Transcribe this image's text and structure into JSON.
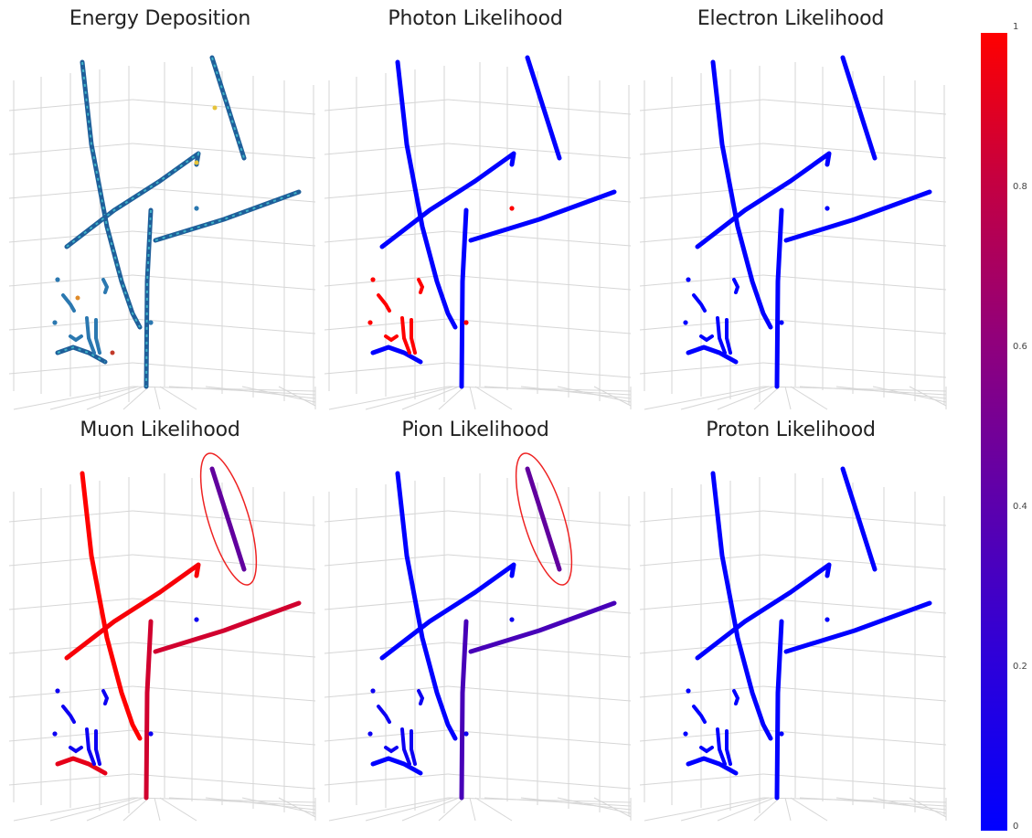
{
  "panels": [
    {
      "title": "Energy Deposition",
      "mode": "energy"
    },
    {
      "title": "Photon Likelihood",
      "values": {
        "a": 0.0,
        "b": 0.0,
        "c": 0.0,
        "d": 0.0,
        "e": 0.0,
        "f": 0.0,
        "frag": 1.0
      }
    },
    {
      "title": "Electron Likelihood",
      "values": {
        "a": 0.0,
        "b": 0.0,
        "c": 0.0,
        "d": 0.0,
        "e": 0.0,
        "f": 0.0,
        "frag": 0.0
      }
    },
    {
      "title": "Muon Likelihood",
      "values": {
        "a": 1.0,
        "b": 0.38,
        "c": 0.97,
        "d": 0.82,
        "e": 0.82,
        "f": 0.9,
        "frag": 0.05
      },
      "highlight": true
    },
    {
      "title": "Pion Likelihood",
      "values": {
        "a": 0.0,
        "b": 0.38,
        "c": 0.0,
        "d": 0.28,
        "e": 0.28,
        "f": 0.0,
        "frag": 0.05
      },
      "highlight": true
    },
    {
      "title": "Proton Likelihood",
      "values": {
        "a": 0.0,
        "b": 0.0,
        "c": 0.0,
        "d": 0.0,
        "e": 0.0,
        "f": 0.0,
        "frag": 0.0
      }
    }
  ],
  "colorbar": {
    "min": 0,
    "max": 1,
    "ticks": [
      "1",
      "0.8",
      "0.6",
      "0.4",
      "0.2",
      "0"
    ],
    "colors": [
      "#0000ff",
      "#ff0000"
    ]
  },
  "chart_data": {
    "type": "scatter",
    "layout": "2 rows x 3 columns of 3D point-cloud views",
    "colorbar_range": [
      0,
      1
    ]
  }
}
